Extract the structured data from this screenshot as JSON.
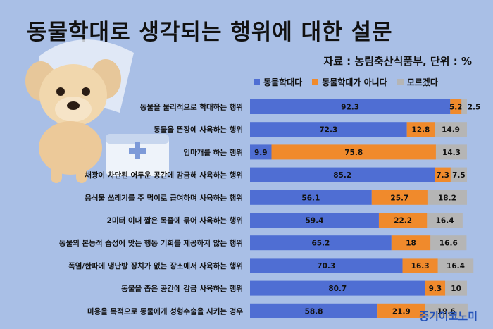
{
  "title": "동물학대로 생각되는 행위에 대한 설문",
  "source": "자료 : 농림축산식품부, 단위 : %",
  "brand": "중기이코노미",
  "colors": {
    "background": "#a9bfe6",
    "series": [
      "#4f6ed3",
      "#f08a2c",
      "#b5b5b5"
    ]
  },
  "chart_data": {
    "type": "bar",
    "orientation": "horizontal",
    "stacked": true,
    "xlim": [
      0,
      100
    ],
    "legend_position": "top-right",
    "categories": [
      "동물을 물리적으로 학대하는 행위",
      "동물을 뜬장에 사육하는 행위",
      "입마개를 하는 행위",
      "채광이 차단된 어두운 공간에 감금해 사육하는 행위",
      "음식물 쓰레기를 주 먹이로 급여하며 사육하는 행위",
      "2미터 이내 짧은 목줄에 묶어 사육하는 행위",
      "동물의 본능적 습성에 맞는 행동 기회를 제공하지 않는 행위",
      "폭염/한파에 냉난방 장치가 없는 장소에서 사육하는 행위",
      "동물을 좁은 공간에 감금 사육하는 행위",
      "미용을 목적으로 동물에게 성형수술을 시키는 경우"
    ],
    "series": [
      {
        "name": "동물학대다",
        "values": [
          92.3,
          72.3,
          9.9,
          85.2,
          56.1,
          59.4,
          65.2,
          70.3,
          80.7,
          58.8
        ]
      },
      {
        "name": "동물학대가 아니다",
        "values": [
          5.2,
          12.8,
          75.8,
          7.3,
          25.7,
          22.2,
          18,
          16.3,
          9.3,
          21.9
        ]
      },
      {
        "name": "모르겠다",
        "values": [
          2.5,
          14.9,
          14.3,
          7.5,
          18.2,
          16.4,
          16.6,
          16.4,
          10,
          19.6
        ]
      }
    ]
  }
}
